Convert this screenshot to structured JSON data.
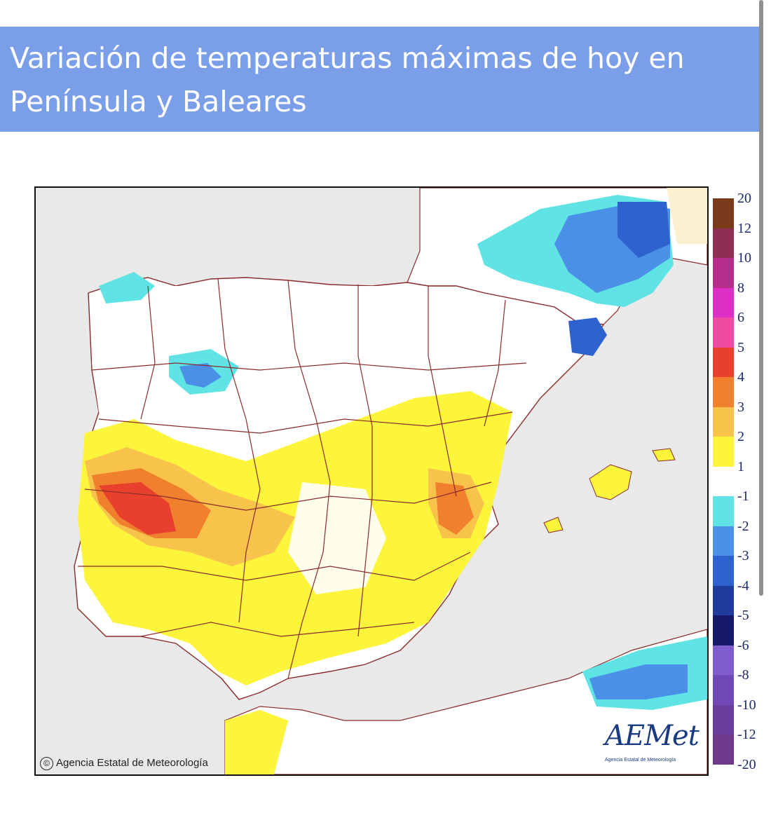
{
  "header": {
    "title": "Variación de temperaturas máximas de hoy en Península y Baleares"
  },
  "map": {
    "copyright_text": "Agencia Estatal de Meteorología",
    "logo_name": "AEMet",
    "logo_subtitle": "Agencia Estatal de Meteorología"
  },
  "legend": {
    "items": [
      {
        "label": "20",
        "color": "#7a3b1c"
      },
      {
        "label": "12",
        "color": "#8e2e55"
      },
      {
        "label": "10",
        "color": "#b52e8c"
      },
      {
        "label": "8",
        "color": "#dd2fc6"
      },
      {
        "label": "6",
        "color": "#ef4aa1"
      },
      {
        "label": "5",
        "color": "#e8402c"
      },
      {
        "label": "4",
        "color": "#f0802e"
      },
      {
        "label": "3",
        "color": "#f8c34a"
      },
      {
        "label": "2",
        "color": "#fdf53b"
      },
      {
        "label": "1",
        "color": "#ffffff"
      },
      {
        "label": "-1",
        "color": "#5fe3e5"
      },
      {
        "label": "-2",
        "color": "#4a90e6"
      },
      {
        "label": "-3",
        "color": "#2e62cf"
      },
      {
        "label": "-4",
        "color": "#1f3c9c"
      },
      {
        "label": "-5",
        "color": "#16186a"
      },
      {
        "label": "-6",
        "color": "#7f5dcc"
      },
      {
        "label": "-8",
        "color": "#7149b6"
      },
      {
        "label": "-10",
        "color": "#6a3c9e"
      },
      {
        "label": "-12",
        "color": "#6e3a8c"
      },
      {
        "label": "-20",
        "color": ""
      }
    ]
  }
}
